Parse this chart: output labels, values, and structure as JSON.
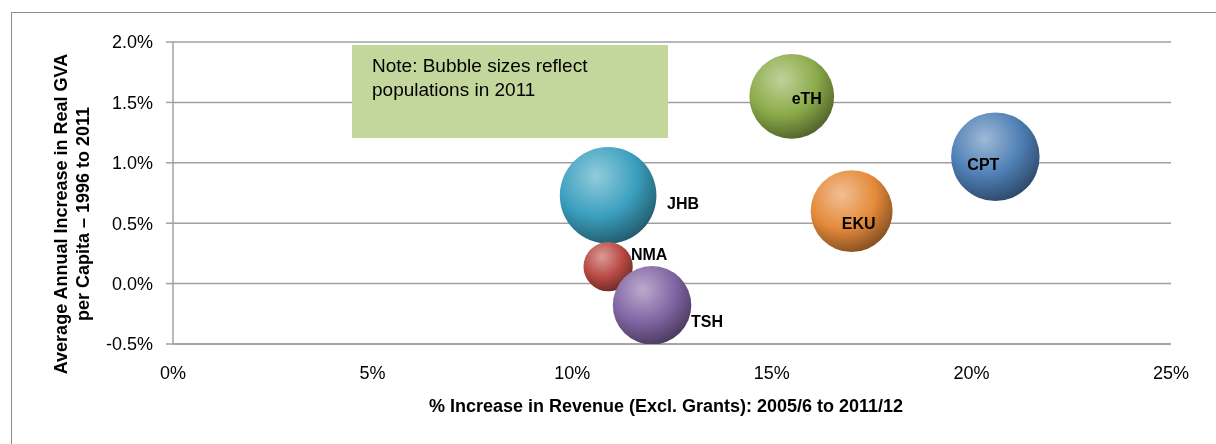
{
  "chart_data": {
    "type": "bubble",
    "xlabel": "% Increase in Revenue (Excl. Grants): 2005/6 to 2011/12",
    "ylabel": "Average Annual Increase in Real GVA per Capita – 1996 to 2011",
    "annotations": [
      "Note: Bubble sizes reflect populations in 2011"
    ],
    "xlim": [
      0,
      25
    ],
    "xticks": [
      {
        "value": 0,
        "label": "0%"
      },
      {
        "value": 5,
        "label": "5%"
      },
      {
        "value": 10,
        "label": "10%"
      },
      {
        "value": 15,
        "label": "15%"
      },
      {
        "value": 20,
        "label": "20%"
      },
      {
        "value": 25,
        "label": "25%"
      }
    ],
    "ylim": [
      -0.5,
      2
    ],
    "yticks": [
      {
        "value": -0.5,
        "label": "-0.5%"
      },
      {
        "value": 0,
        "label": "0.0%"
      },
      {
        "value": 0.5,
        "label": "0.5%"
      },
      {
        "value": 1,
        "label": "1.0%"
      },
      {
        "value": 1.5,
        "label": "1.5%"
      },
      {
        "value": 2,
        "label": "2.0%"
      }
    ],
    "grid": "y",
    "series": [
      {
        "name": "eTH",
        "color": "#8cac4a",
        "x": [
          15.5
        ],
        "values": [
          1.55
        ],
        "sizes": [
          0.77
        ]
      },
      {
        "name": "CPT",
        "color": "#4f7fb5",
        "x": [
          20.6
        ],
        "values": [
          1.05
        ],
        "sizes": [
          0.84
        ]
      },
      {
        "name": "EKU",
        "color": "#e58a3a",
        "x": [
          17.0
        ],
        "values": [
          0.6
        ],
        "sizes": [
          0.72
        ]
      },
      {
        "name": "JHB",
        "color": "#3ba0bf",
        "x": [
          10.9
        ],
        "values": [
          0.73
        ],
        "sizes": [
          1
        ]
      },
      {
        "name": "NMA",
        "color": "#b94a44",
        "x": [
          10.9
        ],
        "values": [
          0.14
        ],
        "sizes": [
          0.26
        ]
      },
      {
        "name": "TSH",
        "color": "#8166a4",
        "x": [
          12.0
        ],
        "values": [
          -0.18
        ],
        "sizes": [
          0.66
        ]
      }
    ]
  }
}
